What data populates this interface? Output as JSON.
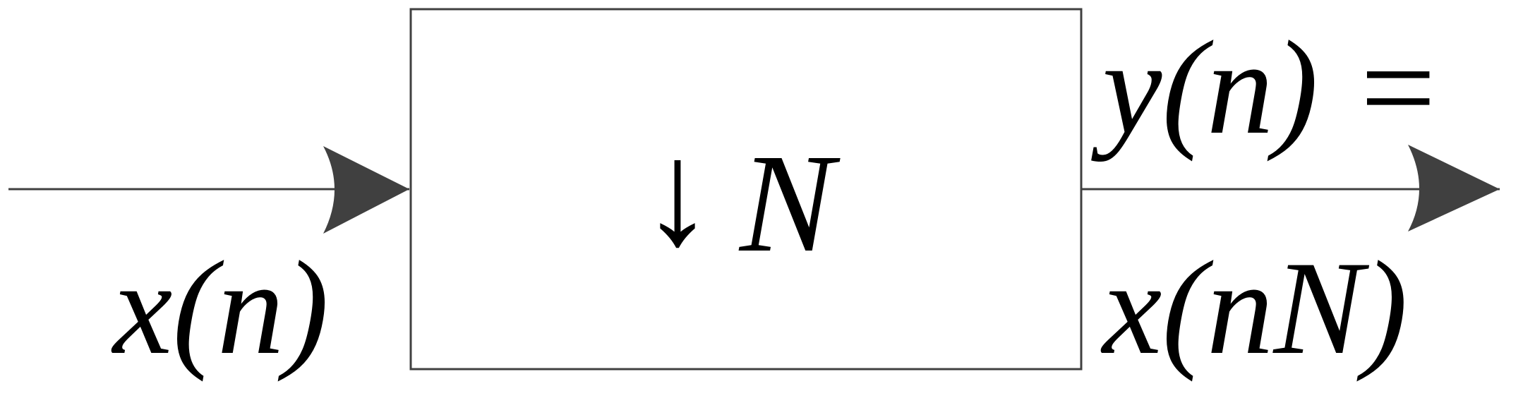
{
  "diagram": {
    "block": {
      "operator_symbol": "↓",
      "operator_factor": "N"
    },
    "input": {
      "label": "x(n)"
    },
    "output": {
      "label_top": "y(n) =",
      "label_bottom": "x(nN)"
    }
  },
  "colors": {
    "line": "#404040",
    "text": "#000000",
    "background": "#ffffff"
  }
}
